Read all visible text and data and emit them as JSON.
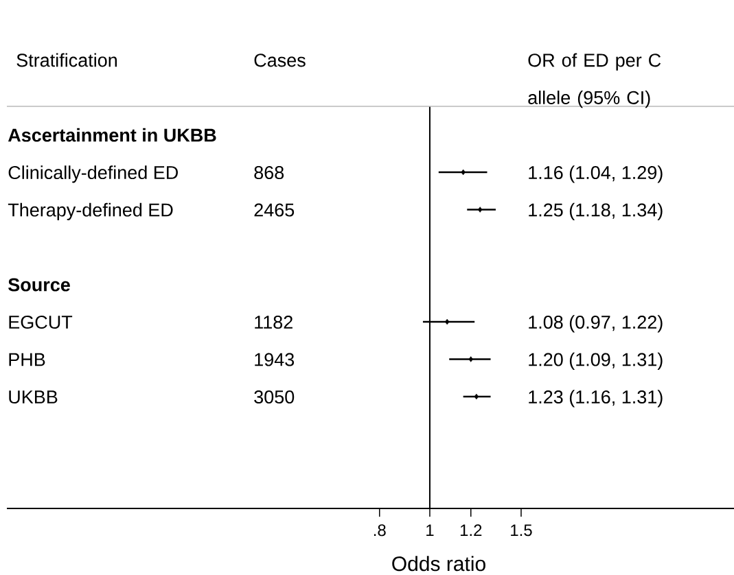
{
  "chart_data": {
    "type": "scatter",
    "orientation": "horizontal",
    "ylabel": "Stratification",
    "xlabel": "Odds ratio",
    "categories": [
      "Ascertainment in UKBB",
      "Clinically-defined ED",
      "Therapy-defined ED",
      null,
      "Source",
      "EGCUT",
      "PHB",
      "UKBB"
    ],
    "values": [
      null,
      1.16,
      1.25,
      null,
      null,
      1.08,
      1.2,
      1.23
    ],
    "errors": [
      null,
      [
        1.04,
        1.29
      ],
      [
        1.18,
        1.34
      ],
      null,
      null,
      [
        0.97,
        1.22
      ],
      [
        1.09,
        1.31
      ],
      [
        1.16,
        1.31
      ]
    ],
    "color": "#000000",
    "marker": "diamond",
    "log": "x",
    "xlim": [
      0.153,
      3.86
    ],
    "xticks": [
      {
        "value": 0.8,
        "label": ".8"
      },
      1,
      1.2,
      1.5
    ],
    "ref_lines": [
      {
        "axis": "x",
        "value": 1
      }
    ],
    "annotations": [
      "Cases",
      "OR of ED per C allele (95% CI)",
      "868",
      "1.16 (1.04, 1.29)",
      "2465",
      "1.25 (1.18, 1.34)",
      "1182",
      "1.08 (0.97, 1.22)",
      "1943",
      "1.20 (1.09, 1.31)",
      "3050",
      "1.23 (1.16, 1.31)"
    ]
  }
}
